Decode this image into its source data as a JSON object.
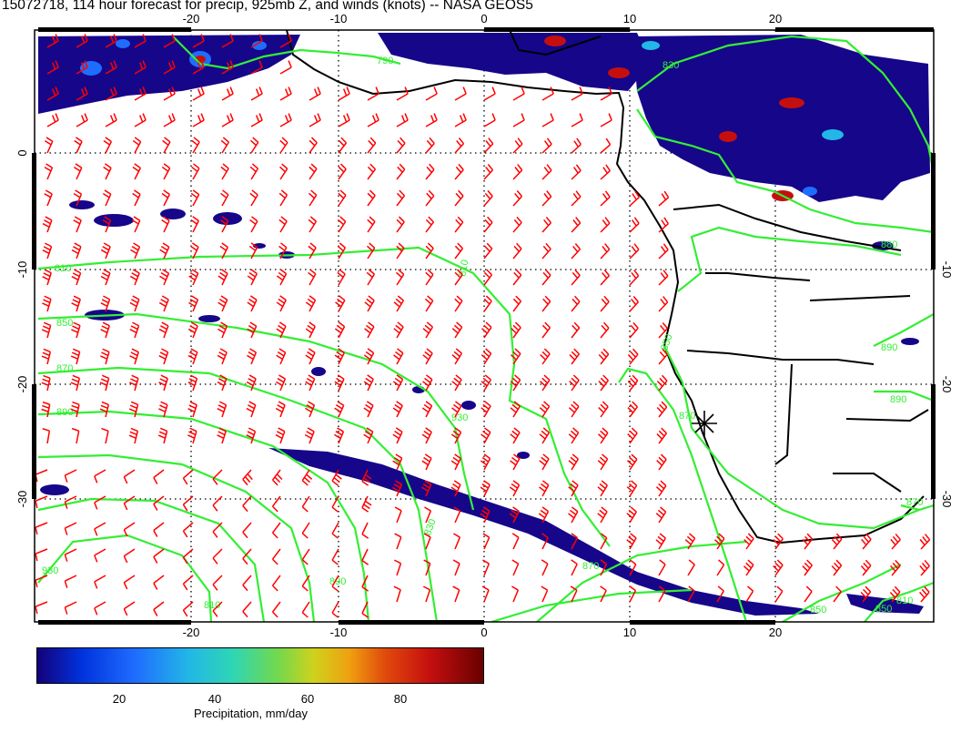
{
  "title": "15072718, 114 hour forecast for precip, 925mb Z, and winds (knots) -- NASA GEOS5",
  "map": {
    "lon_range": [
      -30,
      30
    ],
    "lat_range": [
      -40,
      10
    ],
    "lon_ticks": [
      "-20",
      "-10",
      "0",
      "10",
      "20"
    ],
    "lat_ticks": [
      "0",
      "-10",
      "-20",
      "-30"
    ],
    "contour_labels": [
      "810",
      "790",
      "810",
      "850",
      "870",
      "890",
      "930",
      "830",
      "810",
      "890",
      "930",
      "870",
      "850",
      "870",
      "870",
      "850",
      "810",
      "830",
      "890",
      "890",
      "880",
      "850"
    ],
    "wind_barb_color": "#ff0000",
    "contour_color": "#33ee33",
    "coastline_color": "#000000",
    "marker": "star-marker"
  },
  "colorbar": {
    "ticks": [
      "20",
      "40",
      "60",
      "80"
    ],
    "label": "Precipitation, mm/day"
  }
}
